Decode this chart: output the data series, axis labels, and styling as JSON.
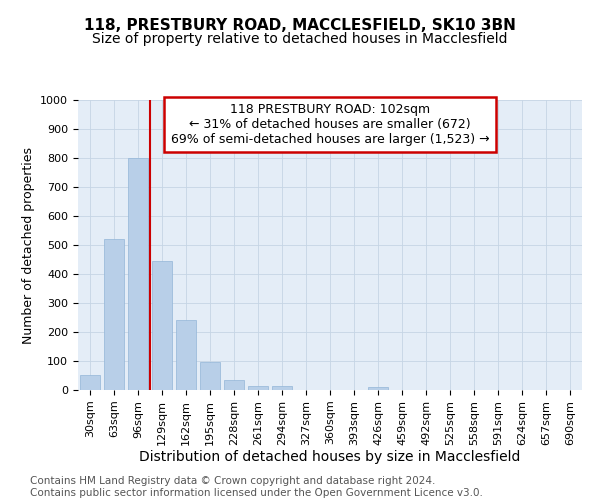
{
  "title": "118, PRESTBURY ROAD, MACCLESFIELD, SK10 3BN",
  "subtitle": "Size of property relative to detached houses in Macclesfield",
  "xlabel": "Distribution of detached houses by size in Macclesfield",
  "ylabel": "Number of detached properties",
  "footnote1": "Contains HM Land Registry data © Crown copyright and database right 2024.",
  "footnote2": "Contains public sector information licensed under the Open Government Licence v3.0.",
  "bar_labels": [
    "30sqm",
    "63sqm",
    "96sqm",
    "129sqm",
    "162sqm",
    "195sqm",
    "228sqm",
    "261sqm",
    "294sqm",
    "327sqm",
    "360sqm",
    "393sqm",
    "426sqm",
    "459sqm",
    "492sqm",
    "525sqm",
    "558sqm",
    "591sqm",
    "624sqm",
    "657sqm",
    "690sqm"
  ],
  "bar_values": [
    52,
    520,
    800,
    445,
    240,
    98,
    36,
    15,
    13,
    0,
    0,
    0,
    10,
    0,
    0,
    0,
    0,
    0,
    0,
    0,
    0
  ],
  "bar_color": "#b8cfe8",
  "bar_edgecolor": "#93b5d8",
  "annotation_line1": "118 PRESTBURY ROAD: 102sqm",
  "annotation_line2": "← 31% of detached houses are smaller (672)",
  "annotation_line3": "69% of semi-detached houses are larger (1,523) →",
  "annotation_box_color": "#cc0000",
  "vline_x": 2.5,
  "vline_color": "#cc0000",
  "ylim": [
    0,
    1000
  ],
  "yticks": [
    0,
    100,
    200,
    300,
    400,
    500,
    600,
    700,
    800,
    900,
    1000
  ],
  "grid_color": "#c5d5e5",
  "background_color": "#e4edf7",
  "title_fontsize": 11,
  "subtitle_fontsize": 10,
  "xlabel_fontsize": 10,
  "ylabel_fontsize": 9,
  "tick_fontsize": 8,
  "annotation_fontsize": 9,
  "footnote_fontsize": 7.5
}
